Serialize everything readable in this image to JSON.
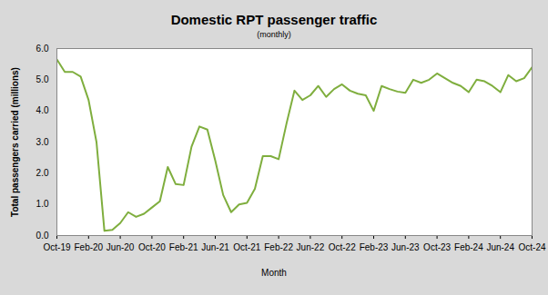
{
  "chart_data": {
    "type": "line",
    "title": "Domestic RPT passenger traffic",
    "subtitle": "(monthly)",
    "x_label": "Month",
    "y_label": "Total passengers carried (millions)",
    "categories": [
      "Oct-19",
      null,
      null,
      null,
      "Feb-20",
      null,
      null,
      null,
      "Jun-20",
      null,
      null,
      null,
      "Oct-20",
      null,
      null,
      null,
      "Feb-21",
      null,
      null,
      null,
      "Jun-21",
      null,
      null,
      null,
      "Oct-21",
      null,
      null,
      null,
      "Feb-22",
      null,
      null,
      null,
      "Jun-22",
      null,
      null,
      null,
      "Oct-22",
      null,
      null,
      null,
      "Feb-23",
      null,
      null,
      null,
      "Jun-23",
      null,
      null,
      null,
      "Oct-23",
      null,
      null,
      null,
      "Feb-24",
      null,
      null,
      null,
      "Jun-24",
      null,
      null,
      null,
      "Oct-24"
    ],
    "values": [
      5.65,
      5.25,
      5.25,
      5.1,
      4.35,
      3.0,
      0.15,
      0.18,
      0.4,
      0.75,
      0.6,
      0.7,
      0.9,
      1.1,
      2.2,
      1.65,
      1.62,
      2.85,
      3.5,
      3.4,
      2.4,
      1.3,
      0.75,
      1.0,
      1.05,
      1.5,
      2.55,
      2.55,
      2.45,
      3.6,
      4.65,
      4.35,
      4.5,
      4.8,
      4.45,
      4.7,
      4.85,
      4.65,
      4.55,
      4.5,
      4.0,
      4.8,
      4.7,
      4.62,
      4.58,
      5.0,
      4.9,
      5.0,
      5.2,
      5.05,
      4.9,
      4.8,
      4.6,
      5.0,
      4.95,
      4.8,
      4.6,
      5.15,
      4.95,
      5.05,
      5.4
    ],
    "color": "#7fae3e",
    "ylim": [
      0,
      6
    ],
    "yticks": [
      {
        "value": 0,
        "label": "0.0"
      },
      {
        "value": 1,
        "label": "1.0"
      },
      {
        "value": 2,
        "label": "2.0"
      },
      {
        "value": 3,
        "label": "3.0"
      },
      {
        "value": 4,
        "label": "4.0"
      },
      {
        "value": 5,
        "label": "5.0"
      },
      {
        "value": 6,
        "label": "6.0"
      }
    ],
    "grid": true
  }
}
